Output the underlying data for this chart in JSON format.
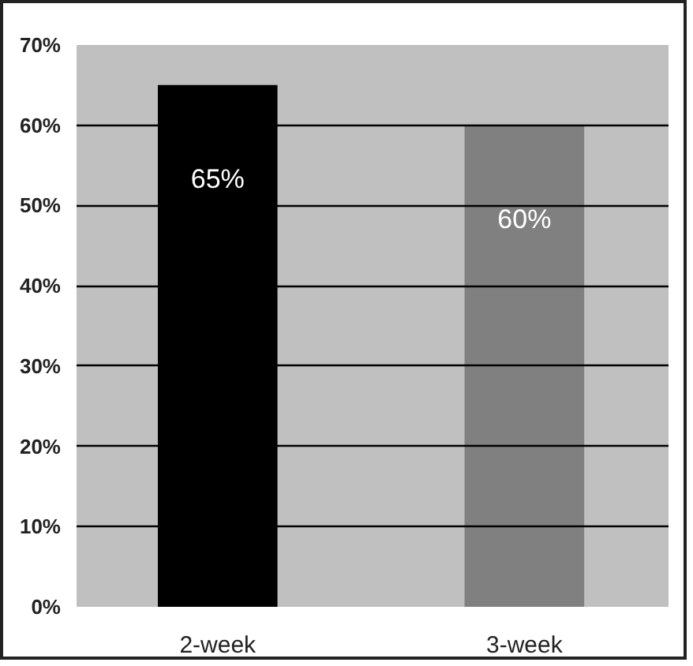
{
  "chart_data": {
    "type": "bar",
    "categories": [
      "2-week",
      "3-week"
    ],
    "values": [
      65,
      60
    ],
    "colors": [
      "#000000",
      "#808080"
    ],
    "value_labels": [
      "65%",
      "60%"
    ],
    "ylim": [
      0,
      70
    ],
    "yticks": [
      {
        "value": 0,
        "label": "0%"
      },
      {
        "value": 10,
        "label": "10%"
      },
      {
        "value": 20,
        "label": "20%"
      },
      {
        "value": 30,
        "label": "30%"
      },
      {
        "value": 40,
        "label": "40%"
      },
      {
        "value": 50,
        "label": "50%"
      },
      {
        "value": 60,
        "label": "60%"
      },
      {
        "value": 70,
        "label": "70%"
      }
    ],
    "grid": "y"
  }
}
